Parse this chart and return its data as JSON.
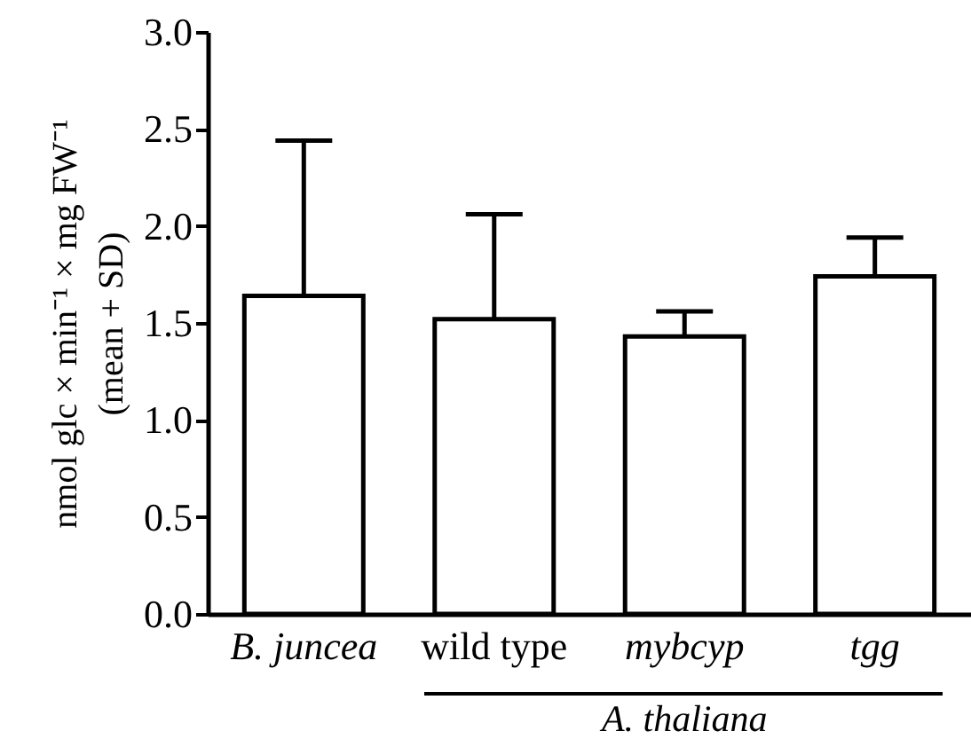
{
  "chart_data": {
    "type": "bar",
    "ylabel": "nmol glc × min⁻¹ × mg FW⁻¹\n(mean + SD)",
    "categories": [
      "B. juncea",
      "wild type",
      "mybcyp",
      "tgg"
    ],
    "values": [
      1.64,
      1.52,
      1.43,
      1.74
    ],
    "errors": [
      [
        1.64,
        2.44
      ],
      [
        1.52,
        2.06
      ],
      [
        1.43,
        1.56
      ],
      [
        1.74,
        1.94
      ]
    ],
    "color": "#ffffff",
    "ylim": [
      0,
      3.0
    ],
    "yticks": [
      {
        "value": 0,
        "label": "0.0"
      },
      {
        "value": 0.5,
        "label": "0.5"
      },
      {
        "value": 1,
        "label": "1.0"
      },
      {
        "value": 1.5,
        "label": "1.5"
      },
      {
        "value": 2,
        "label": "2.0"
      },
      {
        "value": 2.5,
        "label": "2.5"
      },
      {
        "value": 3,
        "label": "3.0"
      }
    ],
    "grid": false,
    "annotations": [
      "A. thaliana"
    ]
  }
}
